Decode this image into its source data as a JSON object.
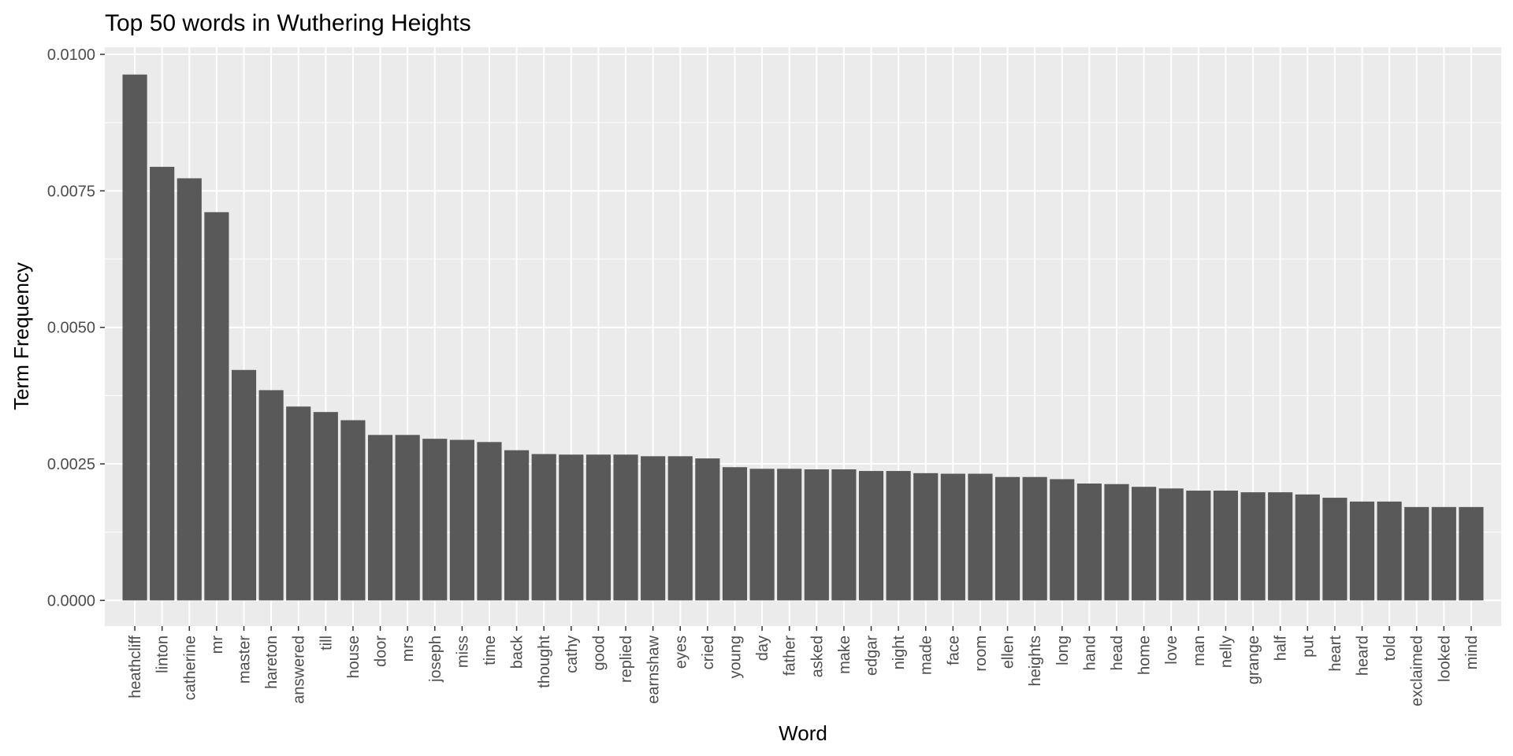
{
  "chart_data": {
    "type": "bar",
    "title": "Top 50 words in Wuthering Heights",
    "xlabel": "Word",
    "ylabel": "Term Frequency",
    "ylim": [
      -0.00047,
      0.01013
    ],
    "yticks": [
      "0.0000",
      "0.0025",
      "0.0050",
      "0.0075",
      "0.0100"
    ],
    "grid": true,
    "legend": "none",
    "colors": {
      "bar": "#595959",
      "panel": "#ebebeb",
      "grid_major": "#ffffff",
      "tick_text": "#4d4d4d"
    },
    "categories": [
      "heathcliff",
      "linton",
      "catherine",
      "mr",
      "master",
      "hareton",
      "answered",
      "till",
      "house",
      "door",
      "mrs",
      "joseph",
      "miss",
      "time",
      "back",
      "thought",
      "cathy",
      "good",
      "replied",
      "earnshaw",
      "eyes",
      "cried",
      "young",
      "day",
      "father",
      "asked",
      "make",
      "edgar",
      "night",
      "made",
      "face",
      "room",
      "ellen",
      "heights",
      "long",
      "hand",
      "head",
      "home",
      "love",
      "man",
      "nelly",
      "grange",
      "half",
      "put",
      "heart",
      "heard",
      "told",
      "exclaimed",
      "looked",
      "mind"
    ],
    "values": [
      0.00963,
      0.00794,
      0.00773,
      0.00711,
      0.00422,
      0.00385,
      0.00355,
      0.00345,
      0.0033,
      0.00303,
      0.00303,
      0.00296,
      0.00294,
      0.0029,
      0.00275,
      0.00268,
      0.00267,
      0.00267,
      0.00267,
      0.00264,
      0.00264,
      0.0026,
      0.00244,
      0.00241,
      0.00241,
      0.0024,
      0.0024,
      0.00237,
      0.00237,
      0.00233,
      0.00232,
      0.00232,
      0.00226,
      0.00226,
      0.00222,
      0.00214,
      0.00213,
      0.00208,
      0.00205,
      0.00201,
      0.00201,
      0.00198,
      0.00198,
      0.00194,
      0.00188,
      0.00181,
      0.00181,
      0.00171,
      0.00171,
      0.00171
    ]
  }
}
